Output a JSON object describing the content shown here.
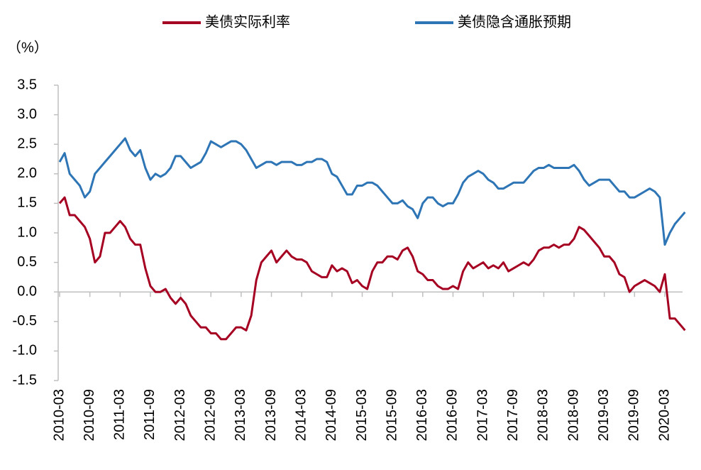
{
  "chart_data": {
    "type": "line",
    "y_unit_label": "（%）",
    "categories": [
      "2010-03",
      null,
      null,
      null,
      null,
      null,
      "2010-09",
      null,
      null,
      null,
      null,
      null,
      "2011-03",
      null,
      null,
      null,
      null,
      null,
      "2011-09",
      null,
      null,
      null,
      null,
      null,
      "2012-03",
      null,
      null,
      null,
      null,
      null,
      "2012-09",
      null,
      null,
      null,
      null,
      null,
      "2013-03",
      null,
      null,
      null,
      null,
      null,
      "2013-09",
      null,
      null,
      null,
      null,
      null,
      "2014-03",
      null,
      null,
      null,
      null,
      null,
      "2014-09",
      null,
      null,
      null,
      null,
      null,
      "2015-03",
      null,
      null,
      null,
      null,
      null,
      "2015-09",
      null,
      null,
      null,
      null,
      null,
      "2016-03",
      null,
      null,
      null,
      null,
      null,
      "2016-09",
      null,
      null,
      null,
      null,
      null,
      "2017-03",
      null,
      null,
      null,
      null,
      null,
      "2017-09",
      null,
      null,
      null,
      null,
      null,
      "2018-03",
      null,
      null,
      null,
      null,
      null,
      "2018-09",
      null,
      null,
      null,
      null,
      null,
      "2019-03",
      null,
      null,
      null,
      null,
      null,
      "2019-09",
      null,
      null,
      null,
      null,
      null,
      "2020-03",
      null,
      null,
      null,
      null
    ],
    "series": [
      {
        "name": "美债实际利率",
        "color": "#a50021",
        "values": [
          1.5,
          1.6,
          1.3,
          1.3,
          1.2,
          1.1,
          0.9,
          0.5,
          0.6,
          1.0,
          1.0,
          1.1,
          1.2,
          1.1,
          0.9,
          0.8,
          0.8,
          0.4,
          0.1,
          0.0,
          0.0,
          0.05,
          -0.1,
          -0.2,
          -0.1,
          -0.2,
          -0.4,
          -0.5,
          -0.6,
          -0.6,
          -0.7,
          -0.7,
          -0.8,
          -0.8,
          -0.7,
          -0.6,
          -0.6,
          -0.65,
          -0.4,
          0.2,
          0.5,
          0.6,
          0.7,
          0.5,
          0.6,
          0.7,
          0.6,
          0.55,
          0.55,
          0.5,
          0.35,
          0.3,
          0.25,
          0.25,
          0.45,
          0.35,
          0.4,
          0.35,
          0.15,
          0.2,
          0.1,
          0.05,
          0.35,
          0.5,
          0.5,
          0.6,
          0.6,
          0.55,
          0.7,
          0.75,
          0.6,
          0.35,
          0.3,
          0.2,
          0.2,
          0.1,
          0.05,
          0.05,
          0.1,
          0.05,
          0.35,
          0.5,
          0.4,
          0.45,
          0.5,
          0.4,
          0.45,
          0.4,
          0.5,
          0.35,
          0.4,
          0.45,
          0.5,
          0.45,
          0.55,
          0.7,
          0.75,
          0.75,
          0.8,
          0.75,
          0.8,
          0.8,
          0.9,
          1.1,
          1.05,
          0.95,
          0.85,
          0.75,
          0.6,
          0.6,
          0.5,
          0.3,
          0.25,
          0.0,
          0.1,
          0.15,
          0.2,
          0.15,
          0.1,
          0.0,
          0.3,
          -0.45,
          -0.45,
          -0.55,
          -0.65
        ]
      },
      {
        "name": "美债隐含通胀预期",
        "color": "#2e75b6",
        "values": [
          2.2,
          2.35,
          2.0,
          1.9,
          1.8,
          1.6,
          1.7,
          2.0,
          2.1,
          2.2,
          2.3,
          2.4,
          2.5,
          2.6,
          2.4,
          2.3,
          2.4,
          2.1,
          1.9,
          2.0,
          1.95,
          2.0,
          2.1,
          2.3,
          2.3,
          2.2,
          2.1,
          2.15,
          2.2,
          2.35,
          2.55,
          2.5,
          2.45,
          2.5,
          2.55,
          2.55,
          2.5,
          2.4,
          2.25,
          2.1,
          2.15,
          2.2,
          2.2,
          2.15,
          2.2,
          2.2,
          2.2,
          2.15,
          2.15,
          2.2,
          2.2,
          2.25,
          2.25,
          2.2,
          2.0,
          1.95,
          1.8,
          1.65,
          1.65,
          1.8,
          1.8,
          1.85,
          1.85,
          1.8,
          1.7,
          1.6,
          1.5,
          1.5,
          1.55,
          1.45,
          1.4,
          1.25,
          1.5,
          1.6,
          1.6,
          1.5,
          1.45,
          1.5,
          1.5,
          1.65,
          1.85,
          1.95,
          2.0,
          2.05,
          2.0,
          1.9,
          1.85,
          1.75,
          1.75,
          1.8,
          1.85,
          1.85,
          1.85,
          1.95,
          2.05,
          2.1,
          2.1,
          2.15,
          2.1,
          2.1,
          2.1,
          2.1,
          2.15,
          2.05,
          1.9,
          1.8,
          1.85,
          1.9,
          1.9,
          1.9,
          1.8,
          1.7,
          1.7,
          1.6,
          1.6,
          1.65,
          1.7,
          1.75,
          1.7,
          1.6,
          0.8,
          1.0,
          1.15,
          1.25,
          1.35
        ]
      }
    ],
    "ylim": [
      -1.5,
      3.5
    ],
    "yticks": [
      3.5,
      {
        "value": 3,
        "label": "3.0"
      },
      2.5,
      {
        "value": 2,
        "label": "2.0"
      },
      1.5,
      {
        "value": 1,
        "label": "1.0"
      },
      0.5,
      {
        "value": 0,
        "label": "0.0"
      },
      -0.5,
      {
        "value": -1,
        "label": "-1.0"
      },
      -1.5
    ],
    "legend": "top",
    "grid": false
  }
}
